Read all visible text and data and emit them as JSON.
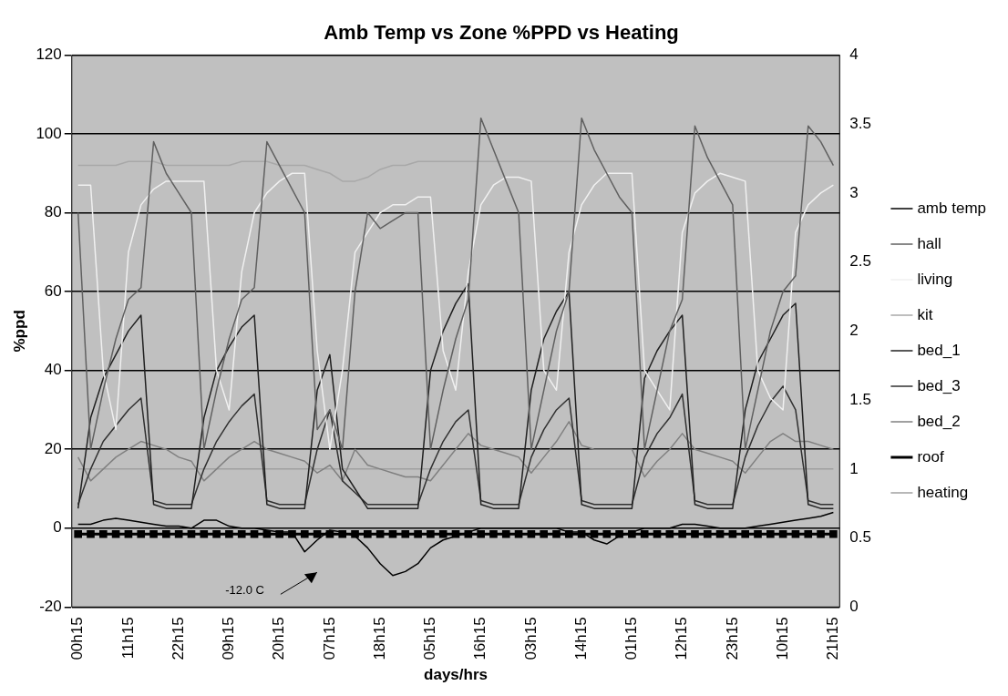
{
  "chart_data": {
    "type": "line",
    "title": "Amb Temp vs Zone %PPD vs Heating",
    "xlabel": "days/hrs",
    "ylabel": "%ppd",
    "categories": [
      "00h15",
      null,
      null,
      null,
      "11h15",
      null,
      null,
      null,
      "22h15",
      null,
      null,
      null,
      "09h15",
      null,
      null,
      null,
      "20h15",
      null,
      null,
      null,
      "07h15",
      null,
      null,
      null,
      "18h15",
      null,
      null,
      null,
      "05h15",
      null,
      null,
      null,
      "16h15",
      null,
      null,
      null,
      "03h15",
      null,
      null,
      null,
      "14h15",
      null,
      null,
      null,
      "01h15",
      null,
      null,
      null,
      "12h15",
      null,
      null,
      null,
      "23h15",
      null,
      null,
      null,
      "10h15",
      null,
      null,
      null,
      "21h15"
    ],
    "series": [
      {
        "name": "amb temp",
        "color": "#000000",
        "values": [
          1,
          1,
          2,
          2.5,
          2,
          1.5,
          1,
          0.5,
          0.5,
          0,
          2,
          2,
          0.5,
          0,
          0,
          -0.5,
          -1,
          -1,
          -6,
          -3,
          -0.5,
          -1,
          -2,
          -5,
          -9,
          -12,
          -11,
          -9,
          -5,
          -3,
          -2,
          -1,
          0,
          0,
          0,
          0,
          0,
          0,
          0,
          -1,
          -1,
          -3,
          -4,
          -2,
          -1,
          0,
          0,
          0,
          1,
          1,
          0.5,
          0,
          0,
          0,
          0.5,
          1,
          1.5,
          2,
          2.5,
          3,
          4
        ]
      },
      {
        "name": "hall",
        "color": "#606060",
        "values": [
          80,
          20,
          35,
          48,
          58,
          61,
          98,
          90,
          85,
          80,
          20,
          35,
          48,
          58,
          61,
          98,
          92,
          86,
          80,
          25,
          30,
          20,
          60,
          80,
          76,
          78,
          80,
          80,
          20,
          35,
          48,
          58,
          104,
          96,
          88,
          80,
          20,
          35,
          50,
          60,
          104,
          96,
          90,
          84,
          80,
          20,
          35,
          50,
          58,
          102,
          94,
          88,
          82,
          20,
          35,
          50,
          60,
          64,
          102,
          98,
          92
        ]
      },
      {
        "name": "living",
        "color": "#f0f0f0",
        "values": [
          87,
          87,
          40,
          25,
          70,
          82,
          86,
          88,
          88,
          88,
          88,
          40,
          30,
          65,
          80,
          85,
          88,
          90,
          90,
          45,
          20,
          40,
          70,
          75,
          80,
          82,
          82,
          84,
          84,
          45,
          35,
          65,
          82,
          87,
          89,
          89,
          88,
          40,
          35,
          70,
          82,
          87,
          90,
          90,
          90,
          40,
          35,
          30,
          75,
          85,
          88,
          90,
          89,
          88,
          40,
          33,
          30,
          75,
          82,
          85,
          87
        ]
      },
      {
        "name": "kit",
        "color": "#a8a8a8",
        "values": [
          92,
          92,
          92,
          92,
          93,
          93,
          93,
          92,
          92,
          92,
          92,
          92,
          92,
          93,
          93,
          93,
          92,
          92,
          92,
          91,
          90,
          88,
          88,
          89,
          91,
          92,
          92,
          93,
          93,
          93,
          93,
          93,
          93,
          93,
          93,
          93,
          93,
          93,
          93,
          93,
          93,
          93,
          93,
          93,
          93,
          93,
          93,
          93,
          93,
          93,
          93,
          93,
          93,
          93,
          93,
          93,
          93,
          93,
          93,
          93,
          93
        ]
      },
      {
        "name": "bed_1",
        "color": "#202020",
        "values": [
          5,
          28,
          38,
          44,
          50,
          54,
          6,
          5,
          5,
          5,
          28,
          40,
          46,
          51,
          54,
          6,
          5,
          5,
          5,
          35,
          44,
          15,
          10,
          5,
          5,
          5,
          5,
          5,
          40,
          50,
          57,
          62,
          6,
          5,
          5,
          5,
          35,
          48,
          55,
          60,
          6,
          5,
          5,
          5,
          5,
          38,
          45,
          50,
          54,
          6,
          5,
          5,
          5,
          30,
          42,
          48,
          54,
          57,
          6,
          5,
          5
        ]
      },
      {
        "name": "bed_3",
        "color": "#303030",
        "values": [
          6,
          15,
          22,
          26,
          30,
          33,
          7,
          6,
          6,
          6,
          15,
          22,
          27,
          31,
          34,
          7,
          6,
          6,
          6,
          20,
          30,
          12,
          9,
          6,
          6,
          6,
          6,
          6,
          15,
          22,
          27,
          30,
          7,
          6,
          6,
          6,
          18,
          25,
          30,
          33,
          7,
          6,
          6,
          6,
          6,
          18,
          24,
          28,
          34,
          7,
          6,
          6,
          6,
          18,
          26,
          32,
          36,
          30,
          7,
          6,
          6
        ]
      },
      {
        "name": "bed_2",
        "color": "#808080",
        "values": [
          18,
          12,
          15,
          18,
          20,
          22,
          21,
          20,
          18,
          17,
          12,
          15,
          18,
          20,
          22,
          20,
          19,
          18,
          17,
          14,
          16,
          12,
          20,
          16,
          15,
          14,
          13,
          13,
          12,
          16,
          20,
          24,
          21,
          20,
          19,
          18,
          14,
          18,
          22,
          27,
          21,
          20,
          20,
          20,
          20,
          13,
          17,
          20,
          24,
          20,
          19,
          18,
          17,
          14,
          18,
          22,
          24,
          22,
          22,
          21,
          20
        ]
      },
      {
        "name": "roof",
        "color": "#000000",
        "marker": "square",
        "values": [
          -1.5,
          -1.5,
          -1.5,
          -1.5,
          -1.5,
          -1.5,
          -1.5,
          -1.5,
          -1.5,
          -1.5,
          -1.5,
          -1.5,
          -1.5,
          -1.5,
          -1.5,
          -1.5,
          -1.5,
          -1.5,
          -1.5,
          -1.5,
          -1.5,
          -1.5,
          -1.5,
          -1.5,
          -1.5,
          -1.5,
          -1.5,
          -1.5,
          -1.5,
          -1.5,
          -1.5,
          -1.5,
          -1.5,
          -1.5,
          -1.5,
          -1.5,
          -1.5,
          -1.5,
          -1.5,
          -1.5,
          -1.5,
          -1.5,
          -1.5,
          -1.5,
          -1.5,
          -1.5,
          -1.5,
          -1.5,
          -1.5,
          -1.5,
          -1.5,
          -1.5,
          -1.5,
          -1.5,
          -1.5,
          -1.5,
          -1.5,
          -1.5,
          -1.5,
          -1.5,
          -1.5
        ]
      },
      {
        "name": "heating",
        "color": "#a0a0a0",
        "axis": "y2",
        "values": [
          1,
          1,
          1,
          1,
          1,
          1,
          1,
          1,
          1,
          1,
          1,
          1,
          1,
          1,
          1,
          1,
          1,
          1,
          1,
          1,
          1,
          1,
          1,
          1,
          1,
          1,
          1,
          1,
          1,
          1,
          1,
          1,
          1,
          1,
          1,
          1,
          1,
          1,
          1,
          1,
          1,
          1,
          1,
          1,
          1,
          1,
          1,
          1,
          1,
          1,
          1,
          1,
          1,
          1,
          1,
          1,
          1,
          1,
          1,
          1,
          1
        ]
      }
    ],
    "ylim": [
      -20,
      120
    ],
    "yticks": [
      -20,
      0,
      20,
      40,
      60,
      80,
      100,
      120
    ],
    "y2lim": [
      0,
      4
    ],
    "y2ticks": [
      0,
      0.5,
      1,
      1.5,
      2,
      2.5,
      3,
      3.5,
      4
    ],
    "annotations": [
      "-12.0 C"
    ],
    "grid": "y",
    "legend": "right",
    "marker": "none"
  }
}
